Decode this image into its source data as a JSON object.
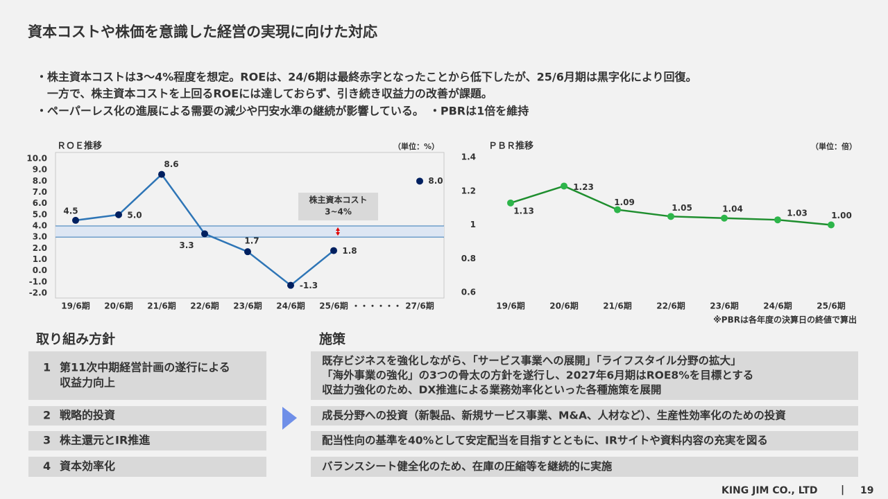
{
  "title": "資本コストや株価を意識した経営の実現に向けた対応",
  "bullets": [
    "・株主資本コストは3～4%程度を想定。ROEは、24/6期は最終赤字となったことから低下したが、25/6月期は黒字化により回復。",
    "一方で、株主資本コストを上回るROEには達しておらず、引き続き収益力の改善が課題。",
    "・ペーパーレス化の進展による需要の減少や円安水準の継続が影響している。　・PBRは1倍を維持"
  ],
  "chart_data": [
    {
      "type": "line",
      "title": "ＲＯＥ推移",
      "unit": "（単位：%）",
      "categories": [
        "19/6期",
        "20/6期",
        "21/6期",
        "22/6期",
        "23/6期",
        "24/6期",
        "25/6期",
        "・・・・・・",
        "27/6期"
      ],
      "values": [
        4.5,
        5.0,
        8.6,
        3.3,
        1.7,
        -1.3,
        1.8,
        null,
        8.0
      ],
      "value_labels": [
        "4.5",
        "5.0",
        "8.6",
        "3.3",
        "1.7",
        "-1.3",
        "1.8",
        null,
        "8.0"
      ],
      "color": "#2e75b6",
      "marker_color": "#002060",
      "ylim": [
        -2,
        10
      ],
      "yticks": [
        {
          "value": 10,
          "label": "10.0"
        },
        {
          "value": 9,
          "label": "9.0"
        },
        {
          "value": 8,
          "label": "8.0"
        },
        {
          "value": 7,
          "label": "7.0"
        },
        {
          "value": 6,
          "label": "6.0"
        },
        {
          "value": 5,
          "label": "5.0"
        },
        {
          "value": 4,
          "label": "4.0"
        },
        {
          "value": 3,
          "label": "3.0"
        },
        {
          "value": 2,
          "label": "2.0"
        },
        {
          "value": 1,
          "label": "1.0"
        },
        {
          "value": 0,
          "label": "0.0"
        },
        {
          "value": -1,
          "label": "-1.0"
        },
        {
          "value": -2,
          "label": "-2.0"
        }
      ],
      "band": [
        3,
        4
      ],
      "annotation": [
        "株主資本コスト",
        "3~4%"
      ],
      "grid": false
    },
    {
      "type": "line",
      "title": "ＰＢＲ推移",
      "unit": "（単位：倍）",
      "categories": [
        "19/6期",
        "20/6期",
        "21/6期",
        "22/6期",
        "23/6期",
        "24/6期",
        "25/6期"
      ],
      "values": [
        1.13,
        1.23,
        1.09,
        1.05,
        1.04,
        1.03,
        1.0
      ],
      "value_labels": [
        "1.13",
        "1.23",
        "1.09",
        "1.05",
        "1.04",
        "1.03",
        "1.00"
      ],
      "color": "#1e8e2e",
      "marker_color": "#2db54a",
      "ylim": [
        0.6,
        1.4
      ],
      "yticks": [
        1.4,
        1.2,
        1,
        0.8,
        0.6
      ],
      "note": "※PBRは各年度の決算日の終値で算出",
      "grid": false
    }
  ],
  "policies": {
    "heading": "取り組み方針",
    "items": [
      {
        "number": 1,
        "lines": [
          "第11次中期経営計画の遂行による",
          "収益力向上"
        ]
      },
      {
        "number": 2,
        "lines": [
          "戦略的投資"
        ]
      },
      {
        "number": 3,
        "lines": [
          "株主還元とIR推進"
        ]
      },
      {
        "number": 4,
        "lines": [
          "資本効率化"
        ]
      }
    ]
  },
  "measures": {
    "heading": "施策",
    "items": [
      {
        "lines": [
          "既存ビジネスを強化しながら、「サービス事業への展開」「ライフスタイル分野の拡大」",
          "「海外事業の強化」の3つの骨太の方針を遂行し、2027年6月期はROE8%を目標とする",
          "収益力強化のため、DX推進による業務効率化といった各種施策を展開"
        ]
      },
      {
        "lines": [
          "成長分野への投資（新製品、新規サービス事業、M&A、人材など）、生産性効率化のための投資"
        ]
      },
      {
        "lines": [
          "配当性向の基準を40%として安定配当を目指すとともに、IRサイトや資料内容の充実を図る"
        ]
      },
      {
        "lines": [
          "バランスシート健全化のため、在庫の圧縮等を継続的に実施"
        ]
      }
    ]
  },
  "footer": {
    "company": "KING JIM CO., LTD",
    "separator": "|",
    "page": "19"
  }
}
